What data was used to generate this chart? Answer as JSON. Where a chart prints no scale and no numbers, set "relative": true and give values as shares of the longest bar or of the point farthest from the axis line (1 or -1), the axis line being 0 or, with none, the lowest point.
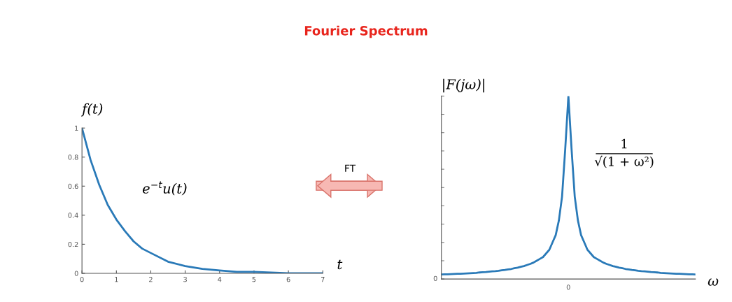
{
  "chart_data": [
    {
      "type": "line",
      "title": "Fourier Spectrum",
      "xlabel": "t",
      "ylabel": "f(t)",
      "annotations": [
        "e$^{−t}$u(t)",
        "FT"
      ],
      "x": [
        0,
        0.25,
        0.5,
        0.75,
        1,
        1.25,
        1.5,
        1.75,
        2,
        2.5,
        3,
        3.5,
        4,
        4.5,
        5,
        6,
        7
      ],
      "series": [
        {
          "color": "#2a7ab8",
          "values": [
            1,
            0.78,
            0.61,
            0.47,
            0.37,
            0.29,
            0.22,
            0.17,
            0.14,
            0.08,
            0.05,
            0.03,
            0.02,
            0.01,
            0.01,
            0,
            0
          ]
        }
      ],
      "xlim": [
        0,
        7
      ],
      "xticks": [
        0,
        1,
        2,
        3,
        4,
        5,
        6,
        7
      ],
      "ylim": [
        0,
        1
      ],
      "yticks": [
        0,
        0.2,
        0.4,
        0.6,
        0.8,
        1
      ],
      "grid": false,
      "legend": false
    },
    {
      "type": "line",
      "relative": true,
      "xlabel": "ω",
      "ylabel": "|F(jω)|",
      "annotations": [
        "1\n√(1 + ω²)",
        "0",
        "0"
      ],
      "categories": [
        null,
        null,
        null,
        null,
        null,
        null,
        null,
        null,
        null,
        null,
        null,
        null,
        null,
        null,
        null,
        null,
        null,
        null,
        null,
        null,
        null,
        null,
        null,
        null,
        null,
        null,
        null,
        null,
        null,
        null,
        null,
        null,
        null,
        null,
        null,
        null,
        null,
        null,
        null,
        null,
        null,
        null,
        null,
        null,
        null,
        null,
        null,
        null,
        null,
        null,
        null,
        null,
        null,
        null,
        null,
        null,
        null,
        null,
        null,
        null,
        null,
        null,
        null,
        null,
        null,
        null,
        null,
        null,
        null,
        null,
        null,
        null,
        null,
        null,
        null,
        null,
        null,
        null,
        null,
        null,
        null
      ],
      "series": [
        {
          "color": "#2a7ab8",
          "values": [
            0.025,
            0.026,
            0.026,
            0.027,
            0.028,
            0.029,
            0.029,
            0.03,
            0.031,
            0.032,
            0.033,
            0.034,
            0.036,
            0.037,
            0.038,
            0.04,
            0.042,
            0.043,
            0.045,
            0.048,
            0.05,
            0.053,
            0.055,
            0.059,
            0.062,
            0.067,
            0.071,
            0.077,
            0.083,
            0.09,
            0.1,
            0.11,
            0.12,
            0.14,
            0.16,
            0.2,
            0.24,
            0.32,
            0.45,
            0.71,
            1,
            0.71,
            0.45,
            0.32,
            0.24,
            0.2,
            0.16,
            0.14,
            0.12,
            0.11,
            0.1,
            0.09,
            0.083,
            0.077,
            0.071,
            0.067,
            0.062,
            0.059,
            0.055,
            0.053,
            0.05,
            0.048,
            0.045,
            0.043,
            0.042,
            0.04,
            0.038,
            0.037,
            0.036,
            0.034,
            0.033,
            0.032,
            0.031,
            0.03,
            0.029,
            0.029,
            0.028,
            0.027,
            0.026,
            0.026,
            0.025
          ]
        }
      ],
      "grid": false,
      "legend": false
    }
  ]
}
